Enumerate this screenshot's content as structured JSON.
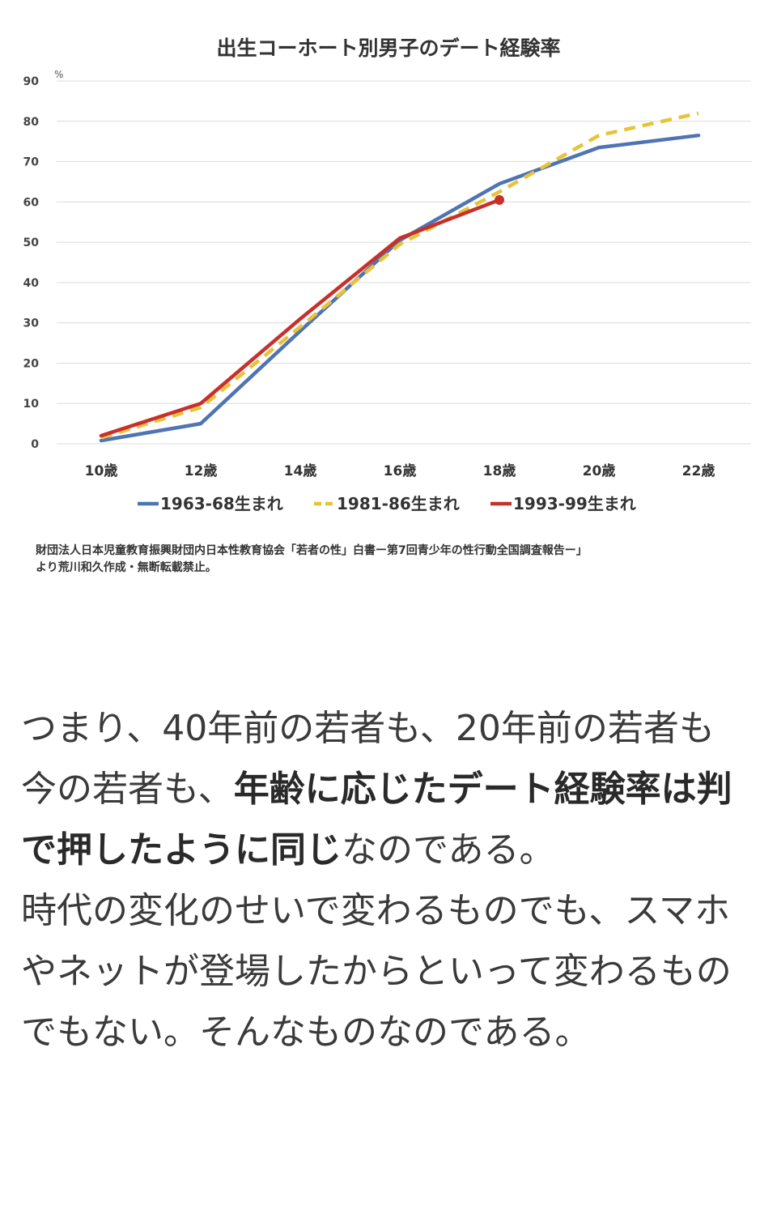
{
  "chart_data": {
    "type": "line",
    "title": "出生コーホート別男子のデート経験率",
    "y_unit": "%",
    "ylim": [
      0,
      90
    ],
    "yticks": [
      "90",
      "80",
      "70",
      "60",
      "50",
      "40",
      "30",
      "20",
      "10",
      "0"
    ],
    "categories": [
      "10歳",
      "12歳",
      "14歳",
      "16歳",
      "18歳",
      "20歳",
      "22歳"
    ],
    "grid": true,
    "legend_position": "bottom",
    "series": [
      {
        "name": "1963-68生まれ",
        "color": "#4f74b4",
        "style": "solid",
        "values": [
          0.8,
          5,
          28,
          50.5,
          64.5,
          73.5,
          76.5
        ]
      },
      {
        "name": "1981-86生まれ",
        "color": "#e6c43a",
        "style": "dashed",
        "values": [
          1.5,
          9,
          29,
          49.5,
          62.5,
          76.5,
          82
        ]
      },
      {
        "name": "1993-99生まれ",
        "color": "#c8302a",
        "style": "solid",
        "values": [
          2,
          10,
          31,
          51,
          60.5,
          null,
          null
        ]
      }
    ]
  },
  "source": {
    "line1": "財団法人日本児童教育振興財団内日本性教育協会「若者の性」白書ー第7回青少年の性行動全国調査報告ー」",
    "line2": "より荒川和久作成・無断転載禁止。"
  },
  "article": {
    "p1_before": "つまり、40年前の若者も、20年前の若者も今の若者も、",
    "p1_bold": "年齢に応じたデート経験率は判で押したように同じ",
    "p1_after": "なのである。",
    "p2": "時代の変化のせいで変わるものでも、スマホやネットが登場したからといって変わるものでもない。そんなものなのである。"
  }
}
